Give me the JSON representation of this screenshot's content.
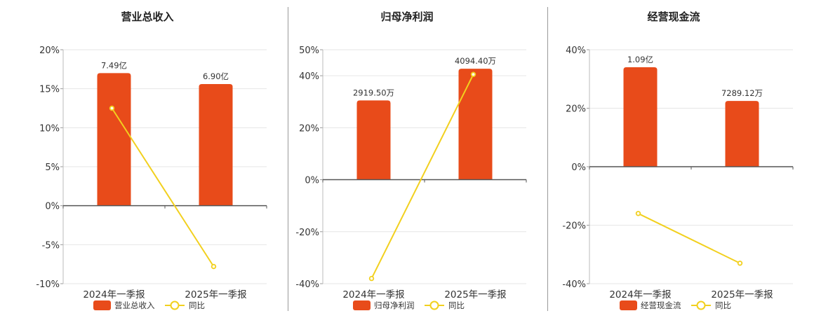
{
  "colors": {
    "bar": "#e84b1a",
    "line": "#f2d01e",
    "axis": "#555555",
    "grid": "#e6e6e6",
    "text": "#333333"
  },
  "chart_data": [
    {
      "type": "bar",
      "title": "营业总收入",
      "categories": [
        "2024年一季报",
        "2025年一季报"
      ],
      "ylim": [
        -10,
        20
      ],
      "yticks": [
        20,
        15,
        10,
        5,
        0,
        -5,
        -10
      ],
      "ytick_labels": [
        "20%",
        "15%",
        "10%",
        "5%",
        "0%",
        "-5%",
        "-10%"
      ],
      "series": [
        {
          "name": "营业总收入",
          "kind": "bar",
          "values": [
            17.0,
            15.6
          ],
          "labels": [
            "7.49亿",
            "6.90亿"
          ]
        },
        {
          "name": "同比",
          "kind": "line",
          "values": [
            12.5,
            -7.8
          ]
        }
      ],
      "grid": true,
      "legend": "bottom"
    },
    {
      "type": "bar",
      "title": "归母净利润",
      "categories": [
        "2024年一季报",
        "2025年一季报"
      ],
      "ylim": [
        -40,
        50
      ],
      "yticks": [
        50,
        40,
        20,
        0,
        -20,
        -40
      ],
      "ytick_labels": [
        "50%",
        "40%",
        "20%",
        "0%",
        "-20%",
        "-40%"
      ],
      "series": [
        {
          "name": "归母净利润",
          "kind": "bar",
          "values": [
            30.5,
            42.7
          ],
          "labels": [
            "2919.50万",
            "4094.40万"
          ]
        },
        {
          "name": "同比",
          "kind": "line",
          "values": [
            -38.0,
            40.5
          ]
        }
      ],
      "grid": true,
      "legend": "bottom"
    },
    {
      "type": "bar",
      "title": "经营现金流",
      "categories": [
        "2024年一季报",
        "2025年一季报"
      ],
      "ylim": [
        -40,
        40
      ],
      "yticks": [
        40,
        20,
        0,
        -20,
        -40
      ],
      "ytick_labels": [
        "40%",
        "20%",
        "0%",
        "-20%",
        "-40%"
      ],
      "series": [
        {
          "name": "经营现金流",
          "kind": "bar",
          "values": [
            34.0,
            22.5
          ],
          "labels": [
            "1.09亿",
            "7289.12万"
          ]
        },
        {
          "name": "同比",
          "kind": "line",
          "values": [
            -16.0,
            -33.0
          ]
        }
      ],
      "grid": true,
      "legend": "bottom"
    }
  ]
}
